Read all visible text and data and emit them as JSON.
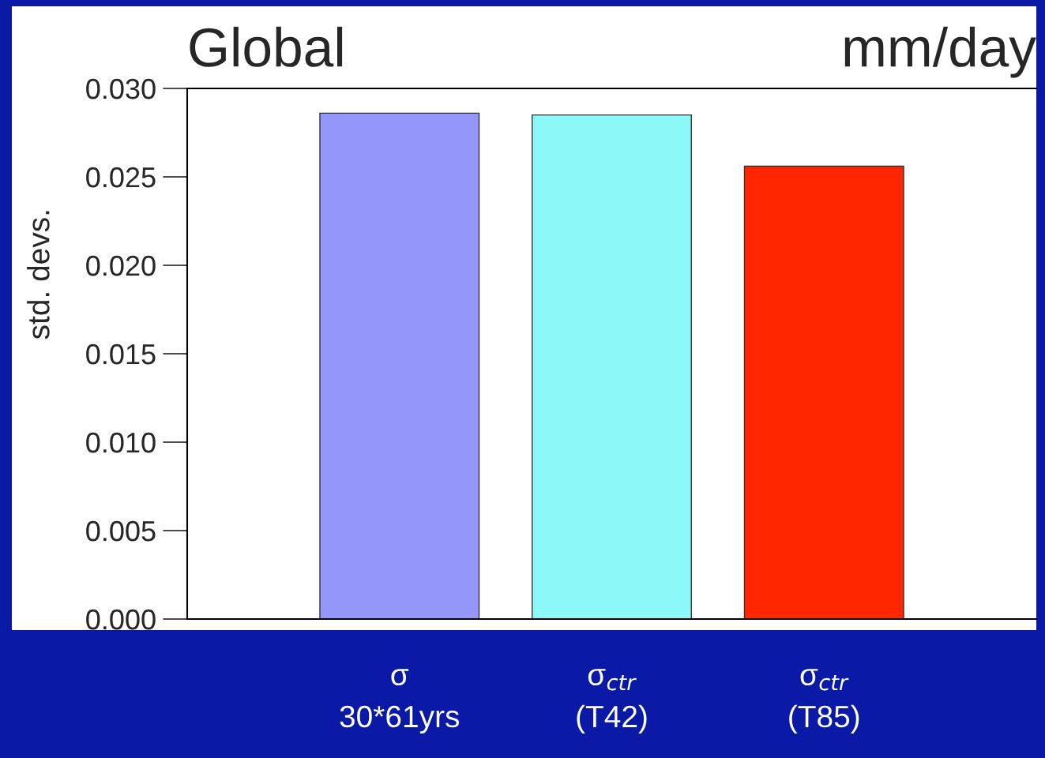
{
  "chart_data": {
    "type": "bar",
    "title": "Global",
    "ylabel": "std. devs.",
    "annotations": [
      "mm/day"
    ],
    "categories": [
      "σ\n30*61yrs",
      "σ$_{ctr}$\n(T42)",
      "σ$_{ctr}$\n(T85)"
    ],
    "values": [
      0.0286,
      0.0285,
      0.0256
    ],
    "colors": [
      "#9496fa",
      "#8cf8f8",
      "#ff2600"
    ],
    "ylim": [
      0,
      0.03
    ],
    "yticks": [
      {
        "value": 0,
        "label": "0.000"
      },
      {
        "value": 0.005,
        "label": "0.005"
      },
      {
        "value": 0.01,
        "label": "0.010"
      },
      {
        "value": 0.015,
        "label": "0.015"
      },
      {
        "value": 0.02,
        "label": "0.020"
      },
      {
        "value": 0.025,
        "label": "0.025"
      },
      {
        "value": 0.03,
        "label": "0.030"
      }
    ],
    "grid": false,
    "legend": false
  }
}
